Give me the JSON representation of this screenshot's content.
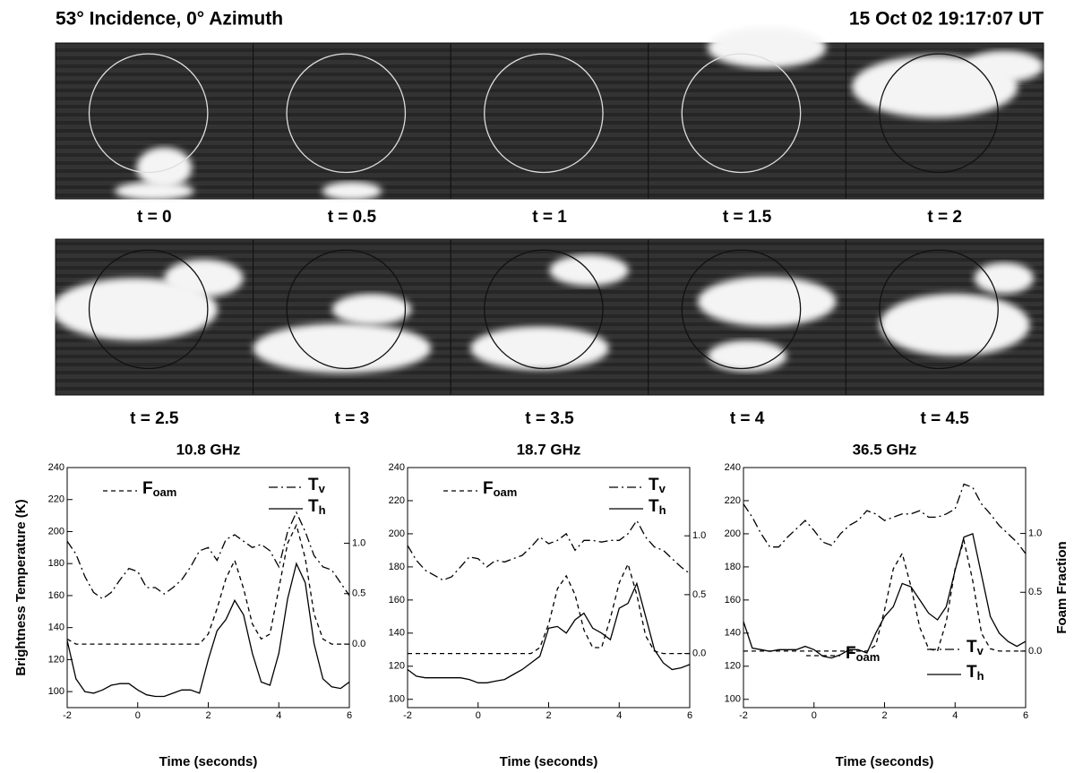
{
  "header": {
    "title": "53° Incidence, 0° Azimuth",
    "timestamp": "15 Oct 02  19:17:07 UT"
  },
  "panels": [
    "t = 0",
    "t = 0.5",
    "t = 1",
    "t = 1.5",
    "t = 2",
    "t = 2.5",
    "t = 3",
    "t = 3.5",
    "t = 4",
    "t = 4.5"
  ],
  "chart_data": [
    {
      "type": "line",
      "title": "10.8 GHz",
      "xlabel": "Time (seconds)",
      "ylabel": "Brightness Temperature (K)",
      "legend": "top",
      "x": [
        -2,
        -1.75,
        -1.5,
        -1.25,
        -1,
        -0.75,
        -0.5,
        -0.25,
        0,
        0.25,
        0.5,
        0.75,
        1,
        1.25,
        1.5,
        1.75,
        2,
        2.25,
        2.5,
        2.75,
        3,
        3.25,
        3.5,
        3.75,
        4,
        4.25,
        4.5,
        4.75,
        5,
        5.25,
        5.5,
        5.75,
        6
      ],
      "xlim": [
        -2,
        6
      ],
      "xticks": [
        -2,
        0,
        2,
        4,
        6
      ],
      "ylim": [
        90,
        240
      ],
      "yticks": [
        100,
        120,
        140,
        160,
        180,
        200,
        220,
        240
      ],
      "y2lim": [
        -0.63,
        1.75
      ],
      "y2ticks": [
        {
          "value": 0,
          "label": "0.0"
        },
        {
          "value": 0.5,
          "label": "0.5"
        },
        {
          "value": 1,
          "label": "1.0"
        }
      ],
      "series": [
        {
          "name": "Foam",
          "color": "#000000",
          "style": "dashed",
          "axis": "y2",
          "values": [
            0.05,
            0,
            0,
            0,
            0,
            0,
            0,
            0,
            0,
            0,
            0,
            0,
            0,
            0,
            0,
            0,
            0.1,
            0.35,
            0.65,
            0.83,
            0.55,
            0.2,
            0.05,
            0.1,
            0.55,
            1.0,
            1.18,
            0.85,
            0.3,
            0.05,
            0,
            0,
            0
          ]
        },
        {
          "name": "Tv",
          "color": "#000000",
          "style": "dashdot",
          "values": [
            194,
            186,
            172,
            162,
            158,
            162,
            170,
            177,
            175,
            165,
            165,
            161,
            165,
            170,
            178,
            188,
            190,
            182,
            195,
            198,
            194,
            190,
            192,
            188,
            178,
            200,
            212,
            200,
            185,
            178,
            176,
            168,
            160
          ]
        },
        {
          "name": "Th",
          "color": "#000000",
          "style": "solid",
          "values": [
            132,
            108,
            100,
            99,
            101,
            104,
            105,
            105,
            101,
            98,
            97,
            97,
            99,
            101,
            101,
            99,
            120,
            138,
            145,
            157,
            148,
            124,
            106,
            104,
            124,
            158,
            180,
            168,
            130,
            108,
            103,
            102,
            106
          ]
        }
      ]
    },
    {
      "type": "line",
      "title": "18.7 GHz",
      "xlabel": "Time (seconds)",
      "legend": "top",
      "x": [
        -2,
        -1.75,
        -1.5,
        -1.25,
        -1,
        -0.75,
        -0.5,
        -0.25,
        0,
        0.25,
        0.5,
        0.75,
        1,
        1.25,
        1.5,
        1.75,
        2,
        2.25,
        2.5,
        2.75,
        3,
        3.25,
        3.5,
        3.75,
        4,
        4.25,
        4.5,
        4.75,
        5,
        5.25,
        5.5,
        5.75,
        6
      ],
      "xlim": [
        -2,
        6
      ],
      "xticks": [
        -2,
        0,
        2,
        4,
        6
      ],
      "ylim": [
        95,
        240
      ],
      "yticks": [
        100,
        120,
        140,
        160,
        180,
        200,
        220,
        240
      ],
      "y2lim": [
        -0.46,
        1.58
      ],
      "y2ticks": [
        {
          "value": 0,
          "label": "0.0"
        },
        {
          "value": 0.5,
          "label": "0.5"
        },
        {
          "value": 1,
          "label": "1.0"
        }
      ],
      "series": [
        {
          "name": "Foam",
          "color": "#000000",
          "style": "dashed",
          "axis": "y2",
          "values": [
            0,
            0,
            0,
            0,
            0,
            0,
            0,
            0,
            0,
            0,
            0,
            0,
            0,
            0,
            0,
            0.05,
            0.25,
            0.55,
            0.66,
            0.5,
            0.2,
            0.05,
            0.05,
            0.3,
            0.6,
            0.76,
            0.5,
            0.15,
            0.02,
            0,
            0,
            0,
            0
          ]
        },
        {
          "name": "Tv",
          "color": "#000000",
          "style": "dashdot",
          "values": [
            193,
            184,
            178,
            175,
            172,
            174,
            180,
            186,
            185,
            180,
            184,
            183,
            185,
            187,
            192,
            198,
            194,
            196,
            200,
            190,
            196,
            196,
            195,
            196,
            196,
            200,
            208,
            198,
            192,
            190,
            185,
            180,
            176
          ]
        },
        {
          "name": "Th",
          "color": "#000000",
          "style": "solid",
          "values": [
            118,
            114,
            113,
            113,
            113,
            113,
            113,
            112,
            110,
            110,
            111,
            112,
            115,
            118,
            122,
            126,
            143,
            144,
            140,
            148,
            152,
            143,
            140,
            136,
            155,
            158,
            170,
            150,
            130,
            122,
            118,
            119,
            121
          ]
        }
      ]
    },
    {
      "type": "line",
      "title": "36.5 GHz",
      "xlabel": "Time (seconds)",
      "y2label": "Foam Fraction",
      "legend": "bottom-right",
      "x": [
        -2,
        -1.75,
        -1.5,
        -1.25,
        -1,
        -0.75,
        -0.5,
        -0.25,
        0,
        0.25,
        0.5,
        0.75,
        1,
        1.25,
        1.5,
        1.75,
        2,
        2.25,
        2.5,
        2.75,
        3,
        3.25,
        3.5,
        3.75,
        4,
        4.25,
        4.5,
        4.75,
        5,
        5.25,
        5.5,
        5.75,
        6
      ],
      "xlim": [
        -2,
        6
      ],
      "xticks": [
        -2,
        0,
        2,
        4,
        6
      ],
      "ylim": [
        95,
        240
      ],
      "yticks": [
        100,
        120,
        140,
        160,
        180,
        200,
        220,
        240
      ],
      "y2lim": [
        -0.48,
        1.56
      ],
      "y2ticks": [
        {
          "value": 0,
          "label": "0.0"
        },
        {
          "value": 0.5,
          "label": "0.5"
        },
        {
          "value": 1,
          "label": "1.0"
        }
      ],
      "series": [
        {
          "name": "Foam",
          "color": "#000000",
          "style": "dashed",
          "axis": "y2",
          "values": [
            0,
            0,
            0,
            0,
            0,
            0,
            0,
            0,
            0,
            0,
            0,
            0,
            0,
            0,
            0,
            0.05,
            0.35,
            0.7,
            0.83,
            0.55,
            0.2,
            0.02,
            0,
            0.25,
            0.7,
            0.94,
            0.6,
            0.15,
            0.02,
            0,
            0,
            0,
            0
          ]
        },
        {
          "name": "Tv",
          "color": "#000000",
          "style": "dashdot",
          "values": [
            218,
            210,
            200,
            192,
            192,
            198,
            203,
            208,
            202,
            195,
            193,
            200,
            205,
            208,
            214,
            212,
            208,
            210,
            212,
            212,
            214,
            210,
            210,
            212,
            215,
            230,
            228,
            218,
            212,
            205,
            200,
            195,
            188
          ]
        },
        {
          "name": "Th",
          "color": "#000000",
          "style": "solid",
          "values": [
            147,
            131,
            130,
            129,
            130,
            130,
            130,
            132,
            130,
            126,
            125,
            127,
            130,
            130,
            128,
            140,
            150,
            156,
            170,
            168,
            160,
            152,
            148,
            156,
            178,
            198,
            200,
            175,
            150,
            140,
            135,
            132,
            135
          ]
        }
      ]
    }
  ]
}
